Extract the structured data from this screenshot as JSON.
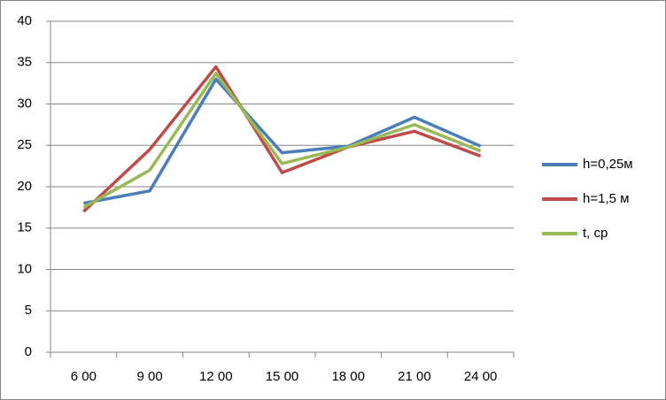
{
  "chart_data": {
    "type": "line",
    "categories": [
      "6 00",
      "9 00",
      "12 00",
      "15 00",
      "18 00",
      "21 00",
      "24 00"
    ],
    "series": [
      {
        "name": "h=0,25м",
        "color": "#4a7ebb",
        "values": [
          18.0,
          19.5,
          33.0,
          24.1,
          24.9,
          28.4,
          24.9
        ]
      },
      {
        "name": "h=1,5 м",
        "color": "#be4b48",
        "values": [
          17.0,
          24.5,
          34.5,
          21.7,
          24.8,
          26.7,
          23.7
        ]
      },
      {
        "name": "t, ср",
        "color": "#98b954",
        "values": [
          17.5,
          22.0,
          33.7,
          22.8,
          24.8,
          27.5,
          24.3
        ]
      }
    ],
    "ylim": [
      0,
      40
    ],
    "yticks": [
      0,
      5,
      10,
      15,
      20,
      25,
      30,
      35,
      40
    ],
    "grid": true,
    "legend": "right"
  }
}
